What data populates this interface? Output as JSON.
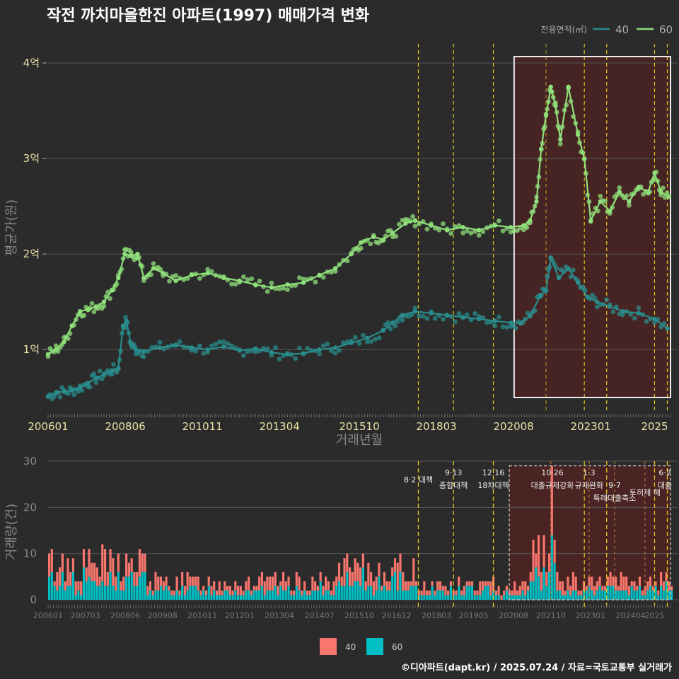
{
  "title": "작전 까치마을한진 아파트(1997) 매매가격 변화",
  "credit": "©디아파트(dapt.kr) / 2025.07.24 / 자료=국토교통부 실거래가",
  "colors": {
    "s40": "#2a8c8c",
    "s60": "#8fe07a",
    "bar40": "#f8766d",
    "bar60": "#00bfc4",
    "policy": "#e6c619",
    "highlight": "#5a1f1f"
  },
  "chart_data": [
    {
      "type": "line",
      "xlabel": "거래년월",
      "ylabel": "평균가(원)",
      "x_ticks": [
        "200601",
        "200806",
        "201011",
        "201304",
        "201510",
        "201803",
        "202008",
        "202301",
        "2025"
      ],
      "y_ticks": [
        {
          "value": 1,
          "label": "1억"
        },
        {
          "value": 2,
          "label": "2억"
        },
        {
          "value": 3,
          "label": "3억"
        },
        {
          "value": 4,
          "label": "4억"
        }
      ],
      "ylim": [
        0.35,
        4.2
      ],
      "legend_title": "전용면적(㎡)",
      "policy_dates": [
        2017.6,
        2018.7,
        2019.95,
        2022.8,
        2023.5,
        2025.0,
        2025.4
      ],
      "recent_marker": 2021.6,
      "highlight_range": [
        2020.6,
        2025.5
      ],
      "series": [
        {
          "name": "40",
          "points": [
            [
              2006.0,
              0.51
            ],
            [
              2006.25,
              0.55
            ],
            [
              2006.5,
              0.56
            ],
            [
              2006.75,
              0.57
            ],
            [
              2007.0,
              0.6
            ],
            [
              2007.25,
              0.65
            ],
            [
              2007.5,
              0.7
            ],
            [
              2007.75,
              0.74
            ],
            [
              2008.0,
              0.78
            ],
            [
              2008.2,
              0.8
            ],
            [
              2008.35,
              1.25
            ],
            [
              2008.45,
              1.3
            ],
            [
              2008.6,
              1.05
            ],
            [
              2008.75,
              1.0
            ],
            [
              2009.0,
              0.98
            ],
            [
              2009.5,
              1.02
            ],
            [
              2010.0,
              1.05
            ],
            [
              2010.5,
              1.02
            ],
            [
              2011.0,
              1.0
            ],
            [
              2011.5,
              1.03
            ],
            [
              2012.0,
              0.99
            ],
            [
              2012.5,
              1.01
            ],
            [
              2013.0,
              0.97
            ],
            [
              2013.5,
              0.95
            ],
            [
              2014.0,
              0.96
            ],
            [
              2014.5,
              1.0
            ],
            [
              2015.0,
              1.02
            ],
            [
              2015.5,
              1.07
            ],
            [
              2016.0,
              1.12
            ],
            [
              2016.5,
              1.2
            ],
            [
              2016.8,
              1.28
            ],
            [
              2017.1,
              1.36
            ],
            [
              2017.5,
              1.4
            ],
            [
              2018.0,
              1.38
            ],
            [
              2018.5,
              1.36
            ],
            [
              2019.0,
              1.34
            ],
            [
              2019.5,
              1.32
            ],
            [
              2020.0,
              1.3
            ],
            [
              2020.5,
              1.28
            ],
            [
              2020.8,
              1.28
            ],
            [
              2021.1,
              1.35
            ],
            [
              2021.4,
              1.55
            ],
            [
              2021.6,
              1.62
            ],
            [
              2021.75,
              1.96
            ],
            [
              2022.0,
              1.75
            ],
            [
              2022.3,
              1.85
            ],
            [
              2022.6,
              1.7
            ],
            [
              2022.9,
              1.55
            ],
            [
              2023.2,
              1.5
            ],
            [
              2023.6,
              1.45
            ],
            [
              2024.0,
              1.4
            ],
            [
              2024.5,
              1.38
            ],
            [
              2025.0,
              1.32
            ],
            [
              2025.4,
              1.22
            ]
          ]
        },
        {
          "name": "60",
          "points": [
            [
              2006.0,
              0.95
            ],
            [
              2006.25,
              1.0
            ],
            [
              2006.5,
              1.08
            ],
            [
              2006.75,
              1.25
            ],
            [
              2007.0,
              1.4
            ],
            [
              2007.25,
              1.42
            ],
            [
              2007.5,
              1.45
            ],
            [
              2007.75,
              1.5
            ],
            [
              2008.0,
              1.62
            ],
            [
              2008.2,
              1.75
            ],
            [
              2008.4,
              2.0
            ],
            [
              2008.6,
              1.98
            ],
            [
              2008.8,
              2.0
            ],
            [
              2009.0,
              1.75
            ],
            [
              2009.3,
              1.85
            ],
            [
              2009.6,
              1.8
            ],
            [
              2010.0,
              1.72
            ],
            [
              2010.5,
              1.78
            ],
            [
              2011.0,
              1.8
            ],
            [
              2011.5,
              1.75
            ],
            [
              2012.0,
              1.72
            ],
            [
              2012.5,
              1.68
            ],
            [
              2013.0,
              1.65
            ],
            [
              2013.5,
              1.68
            ],
            [
              2014.0,
              1.7
            ],
            [
              2014.5,
              1.78
            ],
            [
              2015.0,
              1.85
            ],
            [
              2015.5,
              2.0
            ],
            [
              2015.8,
              2.12
            ],
            [
              2016.2,
              2.18
            ],
            [
              2016.5,
              2.15
            ],
            [
              2016.8,
              2.22
            ],
            [
              2017.2,
              2.32
            ],
            [
              2017.5,
              2.35
            ],
            [
              2018.0,
              2.3
            ],
            [
              2018.5,
              2.25
            ],
            [
              2019.0,
              2.28
            ],
            [
              2019.5,
              2.25
            ],
            [
              2020.0,
              2.3
            ],
            [
              2020.5,
              2.28
            ],
            [
              2020.9,
              2.3
            ],
            [
              2021.1,
              2.35
            ],
            [
              2021.3,
              2.55
            ],
            [
              2021.45,
              3.1
            ],
            [
              2021.6,
              3.45
            ],
            [
              2021.75,
              3.75
            ],
            [
              2021.9,
              3.55
            ],
            [
              2022.05,
              3.2
            ],
            [
              2022.3,
              3.75
            ],
            [
              2022.6,
              3.25
            ],
            [
              2022.8,
              3.0
            ],
            [
              2023.0,
              2.35
            ],
            [
              2023.3,
              2.55
            ],
            [
              2023.6,
              2.45
            ],
            [
              2023.9,
              2.65
            ],
            [
              2024.2,
              2.55
            ],
            [
              2024.5,
              2.7
            ],
            [
              2024.8,
              2.65
            ],
            [
              2025.0,
              2.85
            ],
            [
              2025.2,
              2.65
            ],
            [
              2025.45,
              2.6
            ]
          ]
        }
      ]
    },
    {
      "type": "bar",
      "ylabel": "거래량(건)",
      "ylim": [
        0,
        30
      ],
      "y_ticks": [
        0,
        10,
        20,
        30
      ],
      "x_ticks": [
        "200601",
        "200703",
        "200806",
        "200908",
        "201011",
        "201201",
        "201304",
        "201407",
        "201510",
        "201612",
        "201803",
        "201905",
        "202008",
        "202110",
        "202301",
        "202404",
        "2025"
      ],
      "series_names": [
        "40",
        "60"
      ],
      "annotations": [
        {
          "date": 2017.6,
          "lines": [
            "8·2 대책"
          ]
        },
        {
          "date": 2018.7,
          "lines": [
            "9·13",
            "종합대책"
          ]
        },
        {
          "date": 2019.95,
          "lines": [
            "12·16",
            "18차대책"
          ]
        },
        {
          "date": 2021.8,
          "lines": [
            "10·26",
            "대출규제강화"
          ]
        },
        {
          "date": 2022.95,
          "lines": [
            "1·3",
            "규제완화"
          ]
        },
        {
          "date": 2023.75,
          "lines": [
            "9·7",
            "특례대출축소"
          ]
        },
        {
          "date": 2024.7,
          "lines": [
            "토허제 해"
          ]
        },
        {
          "date": 2025.45,
          "lines": [
            "6·2",
            "대출"
          ]
        }
      ]
    }
  ]
}
